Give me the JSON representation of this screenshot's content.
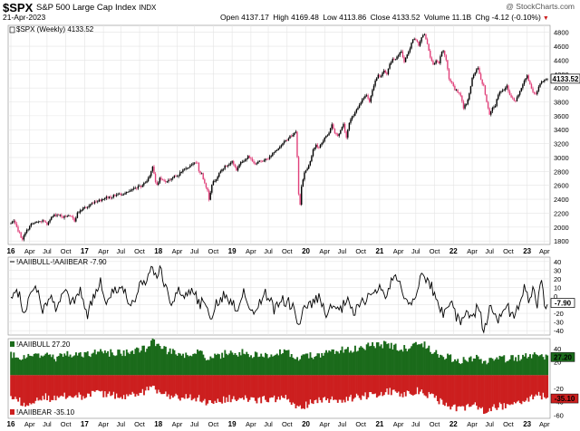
{
  "header": {
    "symbol": "$SPX",
    "name": "S&P 500 Large Cap Index",
    "exchange": "INDX",
    "date": "21-Apr-2023",
    "credit": "@ StockCharts.com",
    "open": "Open 4137.17",
    "high": "High 4169.48",
    "low": "Low 4113.86",
    "close": "Close 4133.52",
    "volume": "Volume 11.1B",
    "change": "Chg -4.12 (-0.10%)",
    "change_arrow": "▼"
  },
  "colors": {
    "up": "#000000",
    "down": "#e0407a",
    "bull": "#1b6b1b",
    "bear": "#cc1f1f",
    "grid": "#e4e4e4"
  },
  "chart_data": [
    {
      "type": "candlestick",
      "legend": "$SPX (Weekly) 4133.52",
      "last_label": "4133.52",
      "ylim": [
        1750,
        4900
      ],
      "y_ticks": [
        1800,
        2000,
        2200,
        2400,
        2600,
        2800,
        3000,
        3200,
        3400,
        3600,
        3800,
        4000,
        4200,
        4400,
        4600,
        4800
      ],
      "x_ticks": [
        "16",
        "Apr",
        "Jul",
        "Oct",
        "17",
        "Apr",
        "Jul",
        "Oct",
        "18",
        "Apr",
        "Jul",
        "Oct",
        "19",
        "Apr",
        "Jul",
        "Oct",
        "20",
        "Apr",
        "Jul",
        "Oct",
        "21",
        "Apr",
        "Jul",
        "Oct",
        "22",
        "Apr",
        "Jul",
        "Oct",
        "23",
        "Apr"
      ],
      "anchors": [
        [
          0,
          2050
        ],
        [
          2,
          2080
        ],
        [
          4,
          1990
        ],
        [
          6,
          1910
        ],
        [
          7,
          1860
        ],
        [
          8,
          1830
        ],
        [
          11,
          1950
        ],
        [
          14,
          2040
        ],
        [
          18,
          2070
        ],
        [
          22,
          2090
        ],
        [
          25,
          2035
        ],
        [
          27,
          2120
        ],
        [
          30,
          2170
        ],
        [
          33,
          2180
        ],
        [
          36,
          2140
        ],
        [
          39,
          2160
        ],
        [
          42,
          2140
        ],
        [
          44,
          2090
        ],
        [
          46,
          2200
        ],
        [
          50,
          2270
        ],
        [
          53,
          2290
        ],
        [
          56,
          2340
        ],
        [
          58,
          2370
        ],
        [
          62,
          2390
        ],
        [
          65,
          2420
        ],
        [
          70,
          2440
        ],
        [
          74,
          2470
        ],
        [
          78,
          2480
        ],
        [
          82,
          2510
        ],
        [
          86,
          2560
        ],
        [
          90,
          2590
        ],
        [
          94,
          2660
        ],
        [
          96,
          2750
        ],
        [
          98,
          2870
        ],
        [
          100,
          2640
        ],
        [
          101,
          2610
        ],
        [
          103,
          2700
        ],
        [
          106,
          2660
        ],
        [
          109,
          2670
        ],
        [
          112,
          2720
        ],
        [
          115,
          2730
        ],
        [
          118,
          2800
        ],
        [
          122,
          2850
        ],
        [
          126,
          2920
        ],
        [
          129,
          2910
        ],
        [
          130,
          2810
        ],
        [
          132,
          2760
        ],
        [
          134,
          2640
        ],
        [
          136,
          2520
        ],
        [
          137,
          2400
        ],
        [
          139,
          2620
        ],
        [
          142,
          2700
        ],
        [
          145,
          2800
        ],
        [
          148,
          2870
        ],
        [
          151,
          2900
        ],
        [
          153,
          2950
        ],
        [
          156,
          2820
        ],
        [
          158,
          2900
        ],
        [
          161,
          2960
        ],
        [
          164,
          3010
        ],
        [
          167,
          2960
        ],
        [
          169,
          2890
        ],
        [
          172,
          2950
        ],
        [
          175,
          2970
        ],
        [
          178,
          2980
        ],
        [
          181,
          3060
        ],
        [
          184,
          3120
        ],
        [
          187,
          3180
        ],
        [
          190,
          3240
        ],
        [
          193,
          3300
        ],
        [
          195,
          3320
        ],
        [
          197,
          3380
        ],
        [
          198,
          3000
        ],
        [
          199,
          2460
        ],
        [
          200,
          2330
        ],
        [
          201,
          2580
        ],
        [
          203,
          2790
        ],
        [
          205,
          2850
        ],
        [
          207,
          2950
        ],
        [
          209,
          3100
        ],
        [
          211,
          3180
        ],
        [
          213,
          3140
        ],
        [
          215,
          3210
        ],
        [
          217,
          3280
        ],
        [
          220,
          3360
        ],
        [
          222,
          3480
        ],
        [
          224,
          3350
        ],
        [
          226,
          3310
        ],
        [
          228,
          3390
        ],
        [
          230,
          3480
        ],
        [
          232,
          3290
        ],
        [
          234,
          3510
        ],
        [
          236,
          3580
        ],
        [
          238,
          3640
        ],
        [
          240,
          3720
        ],
        [
          243,
          3840
        ],
        [
          246,
          3900
        ],
        [
          248,
          3810
        ],
        [
          250,
          3970
        ],
        [
          252,
          4120
        ],
        [
          254,
          4180
        ],
        [
          256,
          4170
        ],
        [
          258,
          4240
        ],
        [
          260,
          4210
        ],
        [
          262,
          4340
        ],
        [
          264,
          4410
        ],
        [
          266,
          4420
        ],
        [
          268,
          4470
        ],
        [
          270,
          4530
        ],
        [
          272,
          4380
        ],
        [
          274,
          4470
        ],
        [
          276,
          4580
        ],
        [
          278,
          4690
        ],
        [
          280,
          4700
        ],
        [
          282,
          4620
        ],
        [
          284,
          4720
        ],
        [
          286,
          4770
        ],
        [
          288,
          4640
        ],
        [
          290,
          4430
        ],
        [
          292,
          4330
        ],
        [
          294,
          4380
        ],
        [
          296,
          4360
        ],
        [
          298,
          4520
        ],
        [
          299,
          4540
        ],
        [
          301,
          4400
        ],
        [
          303,
          4130
        ],
        [
          305,
          4080
        ],
        [
          307,
          3980
        ],
        [
          309,
          3940
        ],
        [
          311,
          3900
        ],
        [
          313,
          3720
        ],
        [
          315,
          3780
        ],
        [
          317,
          3910
        ],
        [
          319,
          4130
        ],
        [
          321,
          4230
        ],
        [
          323,
          4290
        ],
        [
          325,
          4110
        ],
        [
          327,
          4030
        ],
        [
          329,
          3790
        ],
        [
          331,
          3620
        ],
        [
          333,
          3700
        ],
        [
          335,
          3750
        ],
        [
          337,
          3900
        ],
        [
          339,
          3960
        ],
        [
          341,
          3970
        ],
        [
          343,
          4030
        ],
        [
          345,
          3900
        ],
        [
          347,
          3840
        ],
        [
          349,
          3820
        ],
        [
          351,
          3900
        ],
        [
          353,
          3990
        ],
        [
          355,
          4110
        ],
        [
          357,
          4180
        ],
        [
          359,
          4050
        ],
        [
          361,
          3950
        ],
        [
          363,
          3900
        ],
        [
          365,
          4020
        ],
        [
          367,
          4100
        ],
        [
          369,
          4110
        ],
        [
          371,
          4133.52
        ]
      ]
    },
    {
      "type": "line",
      "legend": "!AAIIBULL-!AAIIBEAR -7.90",
      "last_label": "-7.90",
      "ylim": [
        -45,
        45
      ],
      "y_ticks": [
        -40,
        -30,
        -20,
        -10,
        0,
        10,
        20,
        30,
        40
      ],
      "anchors": [
        [
          0,
          -5
        ],
        [
          5,
          5
        ],
        [
          9,
          -20
        ],
        [
          13,
          0
        ],
        [
          18,
          10
        ],
        [
          22,
          -15
        ],
        [
          27,
          0
        ],
        [
          32,
          -18
        ],
        [
          37,
          10
        ],
        [
          42,
          -10
        ],
        [
          48,
          5
        ],
        [
          53,
          -20
        ],
        [
          58,
          0
        ],
        [
          62,
          20
        ],
        [
          65,
          -5
        ],
        [
          70,
          5
        ],
        [
          75,
          10
        ],
        [
          80,
          0
        ],
        [
          85,
          -10
        ],
        [
          90,
          15
        ],
        [
          93,
          10
        ],
        [
          96,
          25
        ],
        [
          98,
          40
        ],
        [
          100,
          20
        ],
        [
          103,
          30
        ],
        [
          107,
          10
        ],
        [
          111,
          -5
        ],
        [
          115,
          5
        ],
        [
          120,
          0
        ],
        [
          126,
          10
        ],
        [
          130,
          -10
        ],
        [
          135,
          -5
        ],
        [
          139,
          -25
        ],
        [
          142,
          -10
        ],
        [
          147,
          0
        ],
        [
          152,
          -5
        ],
        [
          157,
          -15
        ],
        [
          161,
          10
        ],
        [
          165,
          -20
        ],
        [
          170,
          -15
        ],
        [
          176,
          5
        ],
        [
          182,
          -15
        ],
        [
          188,
          -5
        ],
        [
          194,
          -10
        ],
        [
          198,
          -25
        ],
        [
          200,
          -30
        ],
        [
          203,
          -15
        ],
        [
          208,
          -10
        ],
        [
          213,
          0
        ],
        [
          218,
          -25
        ],
        [
          223,
          -10
        ],
        [
          227,
          -20
        ],
        [
          232,
          -5
        ],
        [
          237,
          -20
        ],
        [
          242,
          -10
        ],
        [
          247,
          0
        ],
        [
          252,
          5
        ],
        [
          255,
          10
        ],
        [
          258,
          0
        ],
        [
          262,
          10
        ],
        [
          265,
          25
        ],
        [
          268,
          15
        ],
        [
          272,
          0
        ],
        [
          277,
          -10
        ],
        [
          281,
          10
        ],
        [
          284,
          25
        ],
        [
          287,
          20
        ],
        [
          291,
          10
        ],
        [
          295,
          -10
        ],
        [
          299,
          -20
        ],
        [
          303,
          -5
        ],
        [
          307,
          -20
        ],
        [
          311,
          -35
        ],
        [
          315,
          -15
        ],
        [
          319,
          -25
        ],
        [
          323,
          -10
        ],
        [
          327,
          -38
        ],
        [
          331,
          -15
        ],
        [
          335,
          -20
        ],
        [
          339,
          -30
        ],
        [
          343,
          -10
        ],
        [
          347,
          -25
        ],
        [
          351,
          -15
        ],
        [
          355,
          10
        ],
        [
          358,
          -5
        ],
        [
          361,
          5
        ],
        [
          364,
          -10
        ],
        [
          367,
          20
        ],
        [
          369,
          -10
        ],
        [
          371,
          -7.9
        ]
      ]
    },
    {
      "type": "bar",
      "legend_bull": "!AAIIBULL 27.20",
      "legend_bear": "!AAIIBEAR -35.10",
      "last_bull_label": "27.20",
      "last_bear_label": "-35.10",
      "ylim": [
        -65,
        55
      ],
      "y_ticks": [
        -60,
        -40,
        -20,
        20,
        40
      ],
      "x_ticks": [
        "16",
        "Apr",
        "Jul",
        "Oct",
        "17",
        "Apr",
        "Jul",
        "Oct",
        "18",
        "Apr",
        "Jul",
        "Oct",
        "19",
        "Apr",
        "Jul",
        "Oct",
        "20",
        "Apr",
        "Jul",
        "Oct",
        "21",
        "Apr",
        "Jul",
        "Oct",
        "22",
        "Apr",
        "Jul",
        "Oct",
        "23",
        "Apr"
      ],
      "bull_anchors": [
        [
          0,
          30
        ],
        [
          10,
          27
        ],
        [
          22,
          32
        ],
        [
          30,
          26
        ],
        [
          40,
          31
        ],
        [
          50,
          30
        ],
        [
          60,
          36
        ],
        [
          70,
          33
        ],
        [
          80,
          34
        ],
        [
          90,
          38
        ],
        [
          96,
          42
        ],
        [
          98,
          52
        ],
        [
          102,
          45
        ],
        [
          110,
          35
        ],
        [
          120,
          32
        ],
        [
          130,
          34
        ],
        [
          136,
          25
        ],
        [
          140,
          28
        ],
        [
          150,
          33
        ],
        [
          160,
          34
        ],
        [
          170,
          30
        ],
        [
          180,
          32
        ],
        [
          190,
          34
        ],
        [
          200,
          25
        ],
        [
          210,
          30
        ],
        [
          220,
          35
        ],
        [
          230,
          38
        ],
        [
          240,
          40
        ],
        [
          250,
          45
        ],
        [
          262,
          46
        ],
        [
          270,
          40
        ],
        [
          278,
          42
        ],
        [
          284,
          48
        ],
        [
          290,
          38
        ],
        [
          300,
          28
        ],
        [
          310,
          22
        ],
        [
          320,
          26
        ],
        [
          330,
          20
        ],
        [
          340,
          24
        ],
        [
          350,
          26
        ],
        [
          358,
          28
        ],
        [
          366,
          32
        ],
        [
          371,
          27.2
        ]
      ],
      "bear_anchors": [
        [
          0,
          -35
        ],
        [
          10,
          -42
        ],
        [
          22,
          -32
        ],
        [
          30,
          -36
        ],
        [
          40,
          -30
        ],
        [
          50,
          -32
        ],
        [
          60,
          -28
        ],
        [
          70,
          -30
        ],
        [
          80,
          -32
        ],
        [
          90,
          -26
        ],
        [
          98,
          -20
        ],
        [
          102,
          -24
        ],
        [
          110,
          -32
        ],
        [
          120,
          -33
        ],
        [
          130,
          -34
        ],
        [
          136,
          -45
        ],
        [
          140,
          -38
        ],
        [
          150,
          -36
        ],
        [
          160,
          -33
        ],
        [
          170,
          -38
        ],
        [
          180,
          -35
        ],
        [
          190,
          -34
        ],
        [
          198,
          -48
        ],
        [
          200,
          -50
        ],
        [
          205,
          -44
        ],
        [
          210,
          -40
        ],
        [
          220,
          -36
        ],
        [
          230,
          -38
        ],
        [
          240,
          -32
        ],
        [
          250,
          -30
        ],
        [
          262,
          -24
        ],
        [
          270,
          -30
        ],
        [
          278,
          -26
        ],
        [
          284,
          -22
        ],
        [
          290,
          -32
        ],
        [
          300,
          -42
        ],
        [
          310,
          -52
        ],
        [
          320,
          -45
        ],
        [
          327,
          -55
        ],
        [
          335,
          -48
        ],
        [
          340,
          -46
        ],
        [
          350,
          -40
        ],
        [
          358,
          -36
        ],
        [
          366,
          -30
        ],
        [
          371,
          -35.1
        ]
      ]
    }
  ]
}
